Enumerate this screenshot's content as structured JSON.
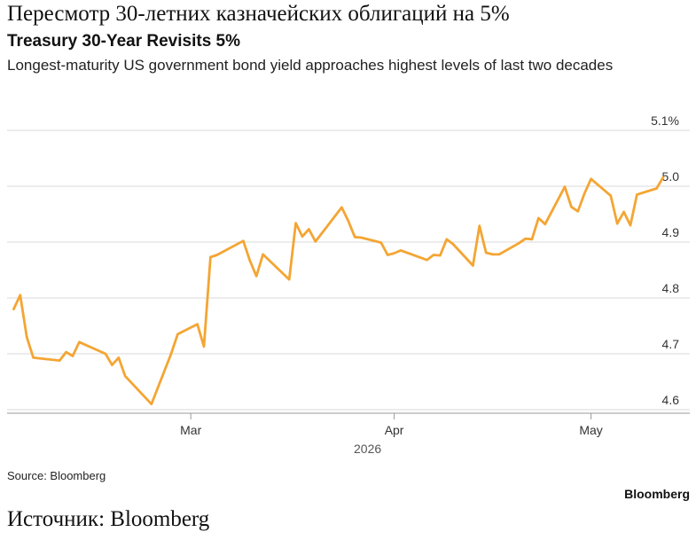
{
  "header": {
    "title_ru": "Пересмотр 30-летних казначейских облигаций на 5%",
    "title_en": "Treasury 30-Year Revisits 5%",
    "subtitle": "Longest-maturity US government bond yield approaches highest levels of last two decades"
  },
  "footer": {
    "source": "Source: Bloomberg",
    "brand": "Bloomberg",
    "source_ru": "Источник: Bloomberg"
  },
  "colors": {
    "line": "#f4a533",
    "grid": "#d9d9d9",
    "axis": "#9a9a9a",
    "text": "#333333"
  },
  "chart_data": {
    "type": "line",
    "title": "Treasury 30-Year Revisits 5%",
    "subtitle": "Longest-maturity US government bond yield approaches highest levels of last two decades",
    "xlabel": "2026",
    "ylabel": "",
    "ylim": [
      4.6,
      5.1
    ],
    "yticks": [
      4.6,
      4.7,
      4.8,
      4.9,
      5.0,
      5.1
    ],
    "ytick_labels": [
      "4.6",
      "4.7",
      "4.8",
      "4.9",
      "5.0",
      "5.1%"
    ],
    "xticks": [
      {
        "label": "Mar",
        "date": "2026-03-01"
      },
      {
        "label": "Apr",
        "date": "2026-04-01"
      },
      {
        "label": "May",
        "date": "2026-05-01"
      }
    ],
    "xlim": [
      "2026-02-01",
      "2026-05-12"
    ],
    "grid": true,
    "series": [
      {
        "x": [
          "2026-02-02",
          "2026-02-03",
          "2026-02-04",
          "2026-02-05",
          "2026-02-09",
          "2026-02-10",
          "2026-02-11",
          "2026-02-12",
          "2026-02-16",
          "2026-02-17",
          "2026-02-18",
          "2026-02-19",
          "2026-02-23",
          "2026-02-26",
          "2026-02-27",
          "2026-03-02",
          "2026-03-03",
          "2026-03-04",
          "2026-03-05",
          "2026-03-09",
          "2026-03-10",
          "2026-03-11",
          "2026-03-12",
          "2026-03-16",
          "2026-03-17",
          "2026-03-18",
          "2026-03-19",
          "2026-03-20",
          "2026-03-24",
          "2026-03-25",
          "2026-03-26",
          "2026-03-27",
          "2026-03-30",
          "2026-03-31",
          "2026-04-01",
          "2026-04-02",
          "2026-04-06",
          "2026-04-07",
          "2026-04-08",
          "2026-04-09",
          "2026-04-10",
          "2026-04-13",
          "2026-04-14",
          "2026-04-15",
          "2026-04-16",
          "2026-04-17",
          "2026-04-20",
          "2026-04-21",
          "2026-04-22",
          "2026-04-23",
          "2026-04-24",
          "2026-04-27",
          "2026-04-28",
          "2026-04-29",
          "2026-04-30",
          "2026-05-01",
          "2026-05-04",
          "2026-05-05",
          "2026-05-06",
          "2026-05-07",
          "2026-05-08",
          "2026-05-11",
          "2026-05-12"
        ],
        "values": [
          4.78,
          4.805,
          4.73,
          4.693,
          4.688,
          4.703,
          4.696,
          4.721,
          4.7,
          4.68,
          4.693,
          4.66,
          4.61,
          4.7,
          4.735,
          4.753,
          4.713,
          4.873,
          4.877,
          4.902,
          4.867,
          4.839,
          4.878,
          4.833,
          4.934,
          4.91,
          4.923,
          4.901,
          4.962,
          4.938,
          4.909,
          4.908,
          4.899,
          4.877,
          4.88,
          4.885,
          4.868,
          4.877,
          4.876,
          4.905,
          4.896,
          4.858,
          4.929,
          4.881,
          4.878,
          4.878,
          4.898,
          4.906,
          4.905,
          4.943,
          4.932,
          4.999,
          4.963,
          4.955,
          4.987,
          5.013,
          4.983,
          4.933,
          4.954,
          4.93,
          4.985,
          4.996,
          5.016
        ]
      }
    ]
  }
}
